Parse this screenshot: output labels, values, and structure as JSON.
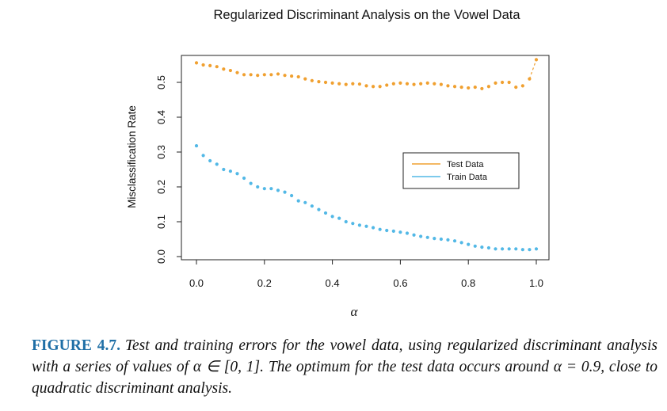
{
  "chart_data": {
    "type": "scatter",
    "title": "Regularized Discriminant Analysis on the Vowel Data",
    "xlabel": "α",
    "ylabel": "Misclassification Rate",
    "xlim": [
      0.0,
      1.0
    ],
    "ylim": [
      0.0,
      0.55
    ],
    "x_ticks": [
      "0.0",
      "0.2",
      "0.4",
      "0.6",
      "0.8",
      "1.0"
    ],
    "y_ticks": [
      "0.0",
      "0.1",
      "0.2",
      "0.3",
      "0.4",
      "0.5"
    ],
    "legend_position": "right",
    "colors": {
      "test": "#f0a030",
      "train": "#52b8e6"
    },
    "x": [
      0.0,
      0.02,
      0.04,
      0.06,
      0.08,
      0.1,
      0.12,
      0.14,
      0.16,
      0.18,
      0.2,
      0.22,
      0.24,
      0.26,
      0.28,
      0.3,
      0.32,
      0.34,
      0.36,
      0.38,
      0.4,
      0.42,
      0.44,
      0.46,
      0.48,
      0.5,
      0.52,
      0.54,
      0.56,
      0.58,
      0.6,
      0.62,
      0.64,
      0.66,
      0.68,
      0.7,
      0.72,
      0.74,
      0.76,
      0.78,
      0.8,
      0.82,
      0.84,
      0.86,
      0.88,
      0.9,
      0.92,
      0.94,
      0.96,
      0.98,
      1.0
    ],
    "series": [
      {
        "name": "Test Data",
        "values": [
          0.556,
          0.55,
          0.548,
          0.545,
          0.538,
          0.534,
          0.528,
          0.522,
          0.522,
          0.52,
          0.522,
          0.522,
          0.524,
          0.52,
          0.518,
          0.516,
          0.51,
          0.505,
          0.502,
          0.5,
          0.498,
          0.496,
          0.494,
          0.496,
          0.495,
          0.49,
          0.488,
          0.488,
          0.492,
          0.496,
          0.498,
          0.496,
          0.494,
          0.496,
          0.498,
          0.496,
          0.494,
          0.49,
          0.488,
          0.486,
          0.484,
          0.486,
          0.482,
          0.488,
          0.498,
          0.5,
          0.5,
          0.486,
          0.49,
          0.51,
          0.565
        ]
      },
      {
        "name": "Train Data",
        "values": [
          0.318,
          0.29,
          0.275,
          0.265,
          0.25,
          0.245,
          0.238,
          0.225,
          0.21,
          0.2,
          0.195,
          0.195,
          0.19,
          0.185,
          0.175,
          0.16,
          0.155,
          0.145,
          0.135,
          0.125,
          0.115,
          0.11,
          0.1,
          0.095,
          0.09,
          0.087,
          0.083,
          0.078,
          0.075,
          0.073,
          0.07,
          0.067,
          0.062,
          0.058,
          0.055,
          0.052,
          0.05,
          0.048,
          0.045,
          0.04,
          0.035,
          0.03,
          0.027,
          0.025,
          0.022,
          0.022,
          0.022,
          0.022,
          0.02,
          0.02,
          0.022
        ]
      }
    ]
  },
  "caption": {
    "label": "FIGURE 4.7.",
    "text": "Test and training errors for the vowel data, using regularized discriminant analysis with a series of values of α ∈ [0, 1]. The optimum for the test data occurs around α = 0.9, close to quadratic discriminant analysis."
  }
}
